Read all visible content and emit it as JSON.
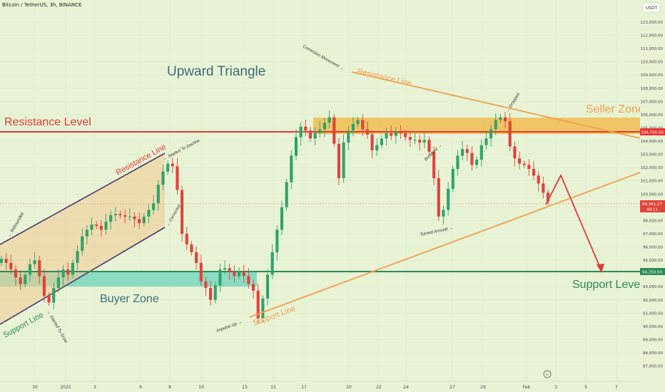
{
  "header": {
    "title": "Bitcoin / TetherUS, 3h, BINANCE"
  },
  "colors": {
    "background": "#e8f3d6",
    "up_candle": "#2fa36b",
    "down_candle": "#e0433a",
    "resistance": "#e53935",
    "support": "#2e8b57",
    "orange": "#f4a04b",
    "zone_fill": "#f2b640",
    "buyer_fill": "#7fd8c0",
    "purple": "#4a3a70",
    "text_blue": "#3d6b7a"
  },
  "chart_data": {
    "type": "candlestick",
    "title": "Bitcoin / TetherUS, 3h, BINANCE",
    "currency": "USDT",
    "ylim": [
      86500,
      113900
    ],
    "y_ticks": [
      "113,000.00",
      "112,000.00",
      "111,000.00",
      "110,000.00",
      "109,000.00",
      "108,000.00",
      "107,000.00",
      "106,000.00",
      "105,000.00",
      "104,000.00",
      "103,000.00",
      "102,000.00",
      "101,000.00",
      "100,000.00",
      "99,000.00",
      "98,000.00",
      "97,000.00",
      "96,000.00",
      "95,000.00",
      "94,000.00",
      "93,000.00",
      "92,000.00",
      "91,000.00",
      "90,000.00",
      "89,000.00",
      "88,000.00",
      "87,000.00"
    ],
    "x_ticks": [
      "30",
      "2025",
      "3",
      "6",
      "8",
      "10",
      "13",
      "15",
      "17",
      "20",
      "22",
      "24",
      "27",
      "29",
      "Feb",
      "3",
      "5",
      "7"
    ],
    "series_close": [
      95100,
      94800,
      94300,
      93700,
      93200,
      93900,
      94700,
      95000,
      93800,
      92300,
      91800,
      92900,
      93700,
      94300,
      93900,
      94800,
      95700,
      96800,
      97300,
      97700,
      97600,
      97300,
      97900,
      98400,
      98500,
      98400,
      98300,
      98300,
      98100,
      97800,
      98300,
      98800,
      99300,
      100700,
      101700,
      102300,
      102100,
      100300,
      97000,
      96200,
      95600,
      94800,
      93400,
      92900,
      92000,
      93100,
      94300,
      94400,
      94100,
      93800,
      94200,
      93800,
      93200,
      92700,
      90600,
      92100,
      93900,
      95600,
      97300,
      99000,
      100900,
      102900,
      104300,
      105100,
      104800,
      104200,
      104600,
      104900,
      105400,
      105800,
      103800,
      101200,
      103900,
      104800,
      105300,
      105600,
      104900,
      104500,
      103300,
      103700,
      104200,
      104600,
      104400,
      104700,
      104600,
      104300,
      104100,
      104100,
      103900,
      104100,
      103200,
      101200,
      98300,
      98800,
      100400,
      101900,
      102900,
      103400,
      103100,
      102200,
      102600,
      103700,
      104200,
      104900,
      105600,
      105800,
      105500,
      103600,
      102700,
      102300,
      102200,
      101900,
      101400,
      100800,
      100100,
      99400
    ],
    "levels": [
      {
        "name": "Resistance Level",
        "price": 104700.0,
        "label": "104,700.00"
      },
      {
        "name": "Support Level",
        "price": 94250.0,
        "label": "94,250.00"
      }
    ],
    "current_price": {
      "label": "99,381.27",
      "countdown": "48:11"
    },
    "zones": [
      {
        "name": "Seller Zone",
        "from": 104500,
        "to": 105800
      },
      {
        "name": "Buyer Zone",
        "from": 93300,
        "to": 94300
      }
    ],
    "annotations": [
      "Upward Triangle",
      "Resistance Level",
      "Seller Zone",
      "Buyer Zone",
      "Support Level",
      "Resistance Line",
      "Support Line",
      "Started To Decline",
      "Rebounded",
      "Started To Grow",
      "Corrected",
      "Correction Movement",
      "Resistance Line",
      "Breakout",
      "Dropped",
      "Turned Around",
      "Impulse Up",
      "Support Line"
    ]
  },
  "labels": {
    "upward_triangle": "Upward Triangle",
    "resistance_level": "Resistance Level",
    "seller_zone": "Seller Zone",
    "buyer_zone": "Buyer Zone",
    "support_level": "Support Level",
    "channel_resistance_line": "Resistance Line",
    "channel_support_line": "Support Line",
    "triangle_resistance_line": "Resistance Line",
    "triangle_support_line": "Support Line",
    "started_to_decline": "← Started To Decline",
    "rebounded": "← Rebounded",
    "started_to_grow": "← Started To Grow",
    "corrected": "← Corrected",
    "correction_movement": "Correction Movement →",
    "breakout": "Breakout →",
    "dropped": "← Dropped",
    "turned_around": "Turned Around →",
    "impulse_up": "Impulse Up →"
  },
  "price_axis": {
    "usdt_badge": "USDT",
    "resistance_badge": "104,700.00",
    "support_badge": "94,250.00",
    "price_badge": "99,381.27",
    "countdown_badge": "48:11"
  }
}
